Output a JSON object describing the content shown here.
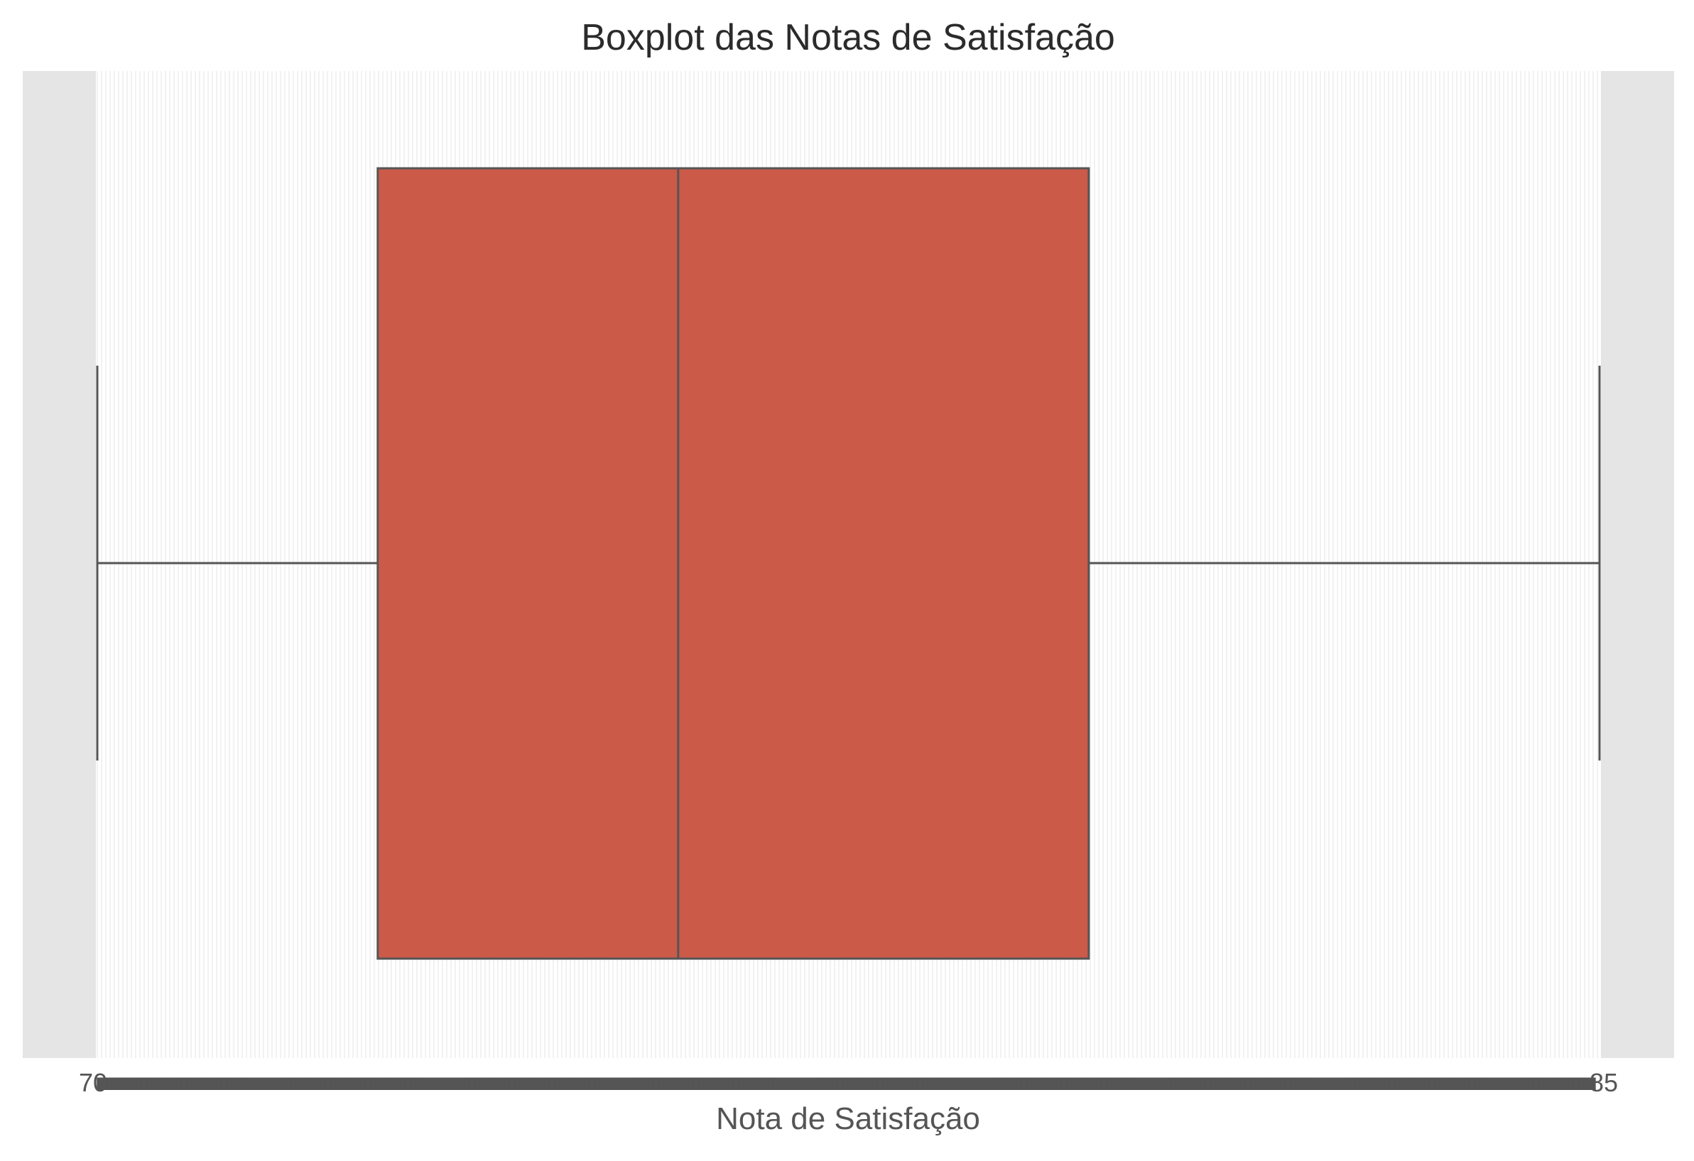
{
  "chart_data": {
    "type": "boxplot",
    "title": "Boxplot das Notas de Satisfação",
    "xlabel": "Nota de Satisfação",
    "ylabel": "",
    "orientation": "horizontal",
    "grid": true,
    "box": {
      "whisker_low": 70.0,
      "q1": 72.8,
      "median": 75.8,
      "q3": 79.9,
      "whisker_high": 85.0
    },
    "x_tick_first_label": "70",
    "x_tick_last_label": "85",
    "colors": {
      "box_fill": "#cb5a49",
      "box_edge": "#555555",
      "axes_background": "#e5e5e5",
      "plot_background": "#ffffff",
      "grid": "#eeeeee",
      "text": "#2b2b2b",
      "label_text": "#555555"
    }
  }
}
